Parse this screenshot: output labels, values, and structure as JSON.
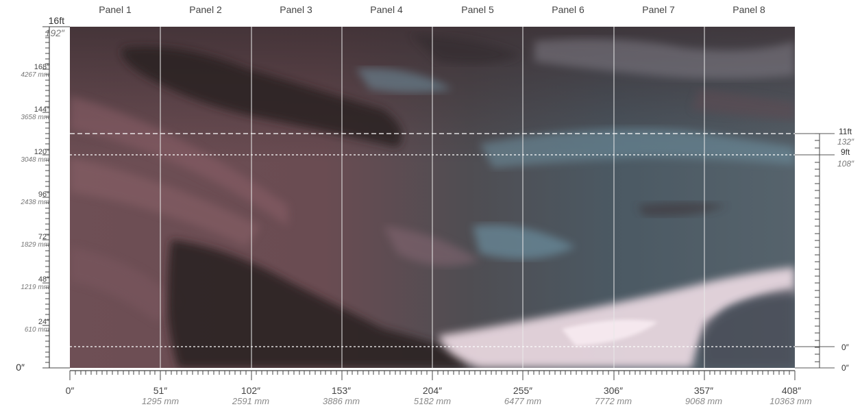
{
  "panels": [
    "Panel 1",
    "Panel 2",
    "Panel 3",
    "Panel 4",
    "Panel 5",
    "Panel 6",
    "Panel 7",
    "Panel 8"
  ],
  "left_axis": {
    "top_ft": "16ft",
    "top_in": "192″",
    "ticks": [
      {
        "imperial": "168″",
        "metric": "4267 mm"
      },
      {
        "imperial": "144″",
        "metric": "3658 mm"
      },
      {
        "imperial": "120″",
        "metric": "3048 mm"
      },
      {
        "imperial": "96″",
        "metric": "2438 mm"
      },
      {
        "imperial": "72″",
        "metric": "1829 mm"
      },
      {
        "imperial": "48″",
        "metric": "1219 mm"
      },
      {
        "imperial": "24″",
        "metric": "610 mm"
      }
    ],
    "zero": "0″"
  },
  "bottom_axis": {
    "ticks": [
      {
        "imperial": "0″",
        "metric": ""
      },
      {
        "imperial": "51″",
        "metric": "1295 mm"
      },
      {
        "imperial": "102″",
        "metric": "2591 mm"
      },
      {
        "imperial": "153″",
        "metric": "3886 mm"
      },
      {
        "imperial": "204″",
        "metric": "5182 mm"
      },
      {
        "imperial": "255″",
        "metric": "6477 mm"
      },
      {
        "imperial": "306″",
        "metric": "7772 mm"
      },
      {
        "imperial": "357″",
        "metric": "9068 mm"
      },
      {
        "imperial": "408″",
        "metric": "10363 mm"
      }
    ]
  },
  "right_axis": {
    "upper_ft": "11ft",
    "upper_in": "132″",
    "mid_ft": "9ft",
    "mid_in": "108″",
    "low": "0″",
    "base": "0″"
  },
  "colors": {
    "mural_left": "#6e4f55",
    "mural_right": "#4a5a66",
    "brush_dark": "#2b2224",
    "brush_blue": "#6f93a3",
    "brush_pink": "#f1dce4",
    "axis": "#444444"
  }
}
